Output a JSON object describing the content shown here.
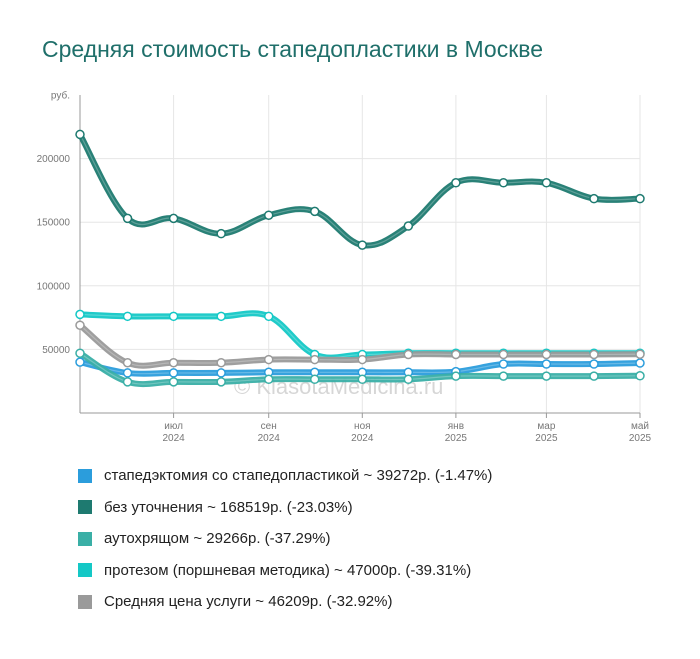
{
  "title": "Средняя стоимость стапедопластики в Москве",
  "watermark": "© KlasotaMedicina.ru",
  "chart_data": {
    "type": "line",
    "ylabel": "руб.",
    "ylim": [
      0,
      250000
    ],
    "yticks": [
      50000,
      100000,
      150000,
      200000
    ],
    "xlim": [
      "2024-05-01",
      "2025-05-01"
    ],
    "x_tick_dates": [
      "2024-07-01",
      "2024-09-01",
      "2024-11-01",
      "2025-01-01",
      "2025-03-01",
      "2025-05-01"
    ],
    "x_tick_labels": [
      [
        "июл",
        "2024"
      ],
      [
        "сен",
        "2024"
      ],
      [
        "ноя",
        "2024"
      ],
      [
        "янв",
        "2025"
      ],
      [
        "мар",
        "2025"
      ],
      [
        "май",
        "2025"
      ]
    ],
    "x": [
      "2024-05-01",
      "2024-06-01",
      "2024-07-01",
      "2024-08-01",
      "2024-09-01",
      "2024-10-01",
      "2024-11-01",
      "2024-12-01",
      "2025-01-01",
      "2025-02-01",
      "2025-03-01",
      "2025-04-01",
      "2025-05-01"
    ],
    "grid": true,
    "legend_position": "bottom",
    "series": [
      {
        "name": "стапедэктомия со стапедопластикой",
        "color": "#2b9ddc",
        "values": [
          40000,
          31500,
          31500,
          31500,
          32000,
          32000,
          32000,
          32000,
          32500,
          38500,
          38500,
          38500,
          39272
        ]
      },
      {
        "name": "аутохрящом",
        "color": "#3aafa6",
        "values": [
          47000,
          24500,
          24500,
          24500,
          26500,
          26500,
          26500,
          26500,
          29000,
          29000,
          29000,
          29000,
          29266
        ]
      },
      {
        "name": "протезом (поршневая методика)",
        "color": "#14c8c6",
        "values": [
          77500,
          76000,
          76000,
          76000,
          76000,
          46000,
          46000,
          47000,
          47000,
          47000,
          47000,
          47000,
          47000
        ]
      },
      {
        "name": "Средняя цена услуги",
        "color": "#9a9a9a",
        "values": [
          69000,
          39500,
          39500,
          39500,
          42000,
          42000,
          42000,
          46000,
          46000,
          46000,
          46000,
          46000,
          46209
        ]
      },
      {
        "name": "без уточнения",
        "color": "#1e7a70",
        "values": [
          219000,
          153000,
          153000,
          141000,
          155500,
          158500,
          132000,
          147000,
          181000,
          181000,
          181000,
          168519,
          168519
        ]
      }
    ]
  },
  "legend": [
    {
      "label": "стапедэктомия со стапедопластикой ~ 39272р. (-1.47%)",
      "color": "#2b9ddc"
    },
    {
      "label": "без уточнения ~ 168519р. (-23.03%)",
      "color": "#1e7a70"
    },
    {
      "label": "аутохрящом ~ 29266р. (-37.29%)",
      "color": "#3aafa6"
    },
    {
      "label": "протезом (поршневая методика) ~ 47000р. (-39.31%)",
      "color": "#14c8c6"
    },
    {
      "label": "Средняя цена услуги ~ 46209р. (-32.92%)",
      "color": "#9a9a9a"
    }
  ]
}
